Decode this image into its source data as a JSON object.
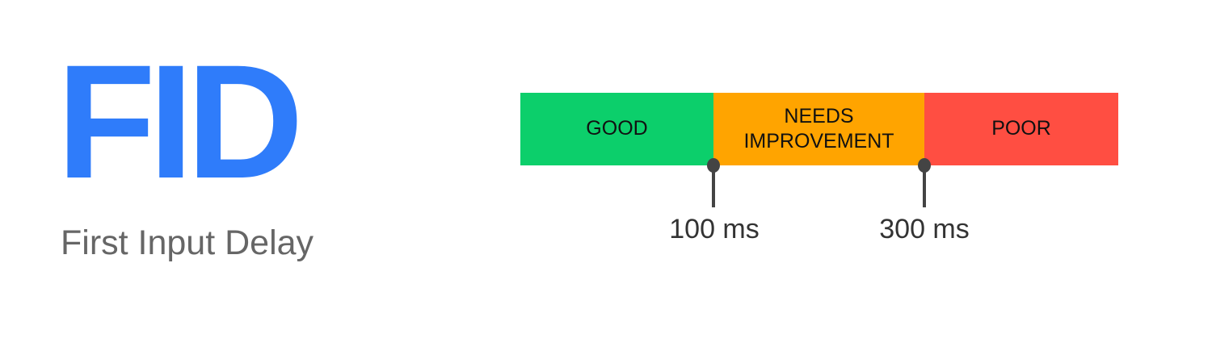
{
  "title": {
    "text": "FID",
    "color": "#2f7cfa"
  },
  "subtitle": "First Input Delay",
  "bar": {
    "segments": [
      {
        "label": "GOOD",
        "color": "#0ccf6b"
      },
      {
        "label": "NEEDS IMPROVEMENT",
        "color": "#ffa400"
      },
      {
        "label": "POOR",
        "color": "#ff4e42"
      }
    ],
    "thresholds": [
      {
        "label": "100 ms",
        "value": 100
      },
      {
        "label": "300 ms",
        "value": 300
      }
    ]
  }
}
